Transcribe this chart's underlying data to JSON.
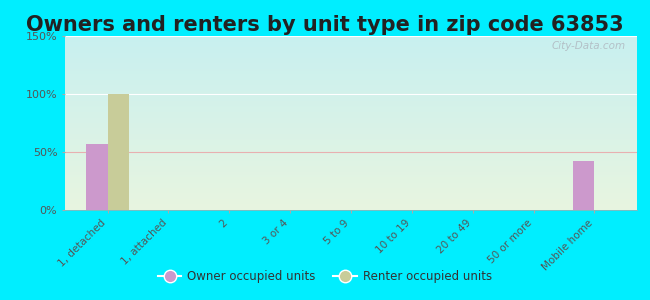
{
  "title": "Owners and renters by unit type in zip code 63853",
  "categories": [
    "1, detached",
    "1, attached",
    "2",
    "3 or 4",
    "5 to 9",
    "10 to 19",
    "20 to 49",
    "50 or more",
    "Mobile home"
  ],
  "owner_values": [
    57,
    0,
    0,
    0,
    0,
    0,
    0,
    0,
    42
  ],
  "renter_values": [
    100,
    0,
    0,
    0,
    0,
    0,
    0,
    0,
    0
  ],
  "owner_color": "#cc99cc",
  "renter_color": "#c8cc99",
  "background_outer": "#00eeff",
  "background_top": "#c8f0f0",
  "background_bottom": "#e8f5e0",
  "ylim": [
    0,
    150
  ],
  "yticks": [
    0,
    50,
    100,
    150
  ],
  "ytick_labels": [
    "0%",
    "50%",
    "100%",
    "150%"
  ],
  "bar_width": 0.35,
  "title_fontsize": 15,
  "watermark": "City-Data.com",
  "legend_owner": "Owner occupied units",
  "legend_renter": "Renter occupied units",
  "grid_color_50": "#e8a0a0",
  "grid_color_100": "#ffffff",
  "grid_color_150": "#ffffff"
}
